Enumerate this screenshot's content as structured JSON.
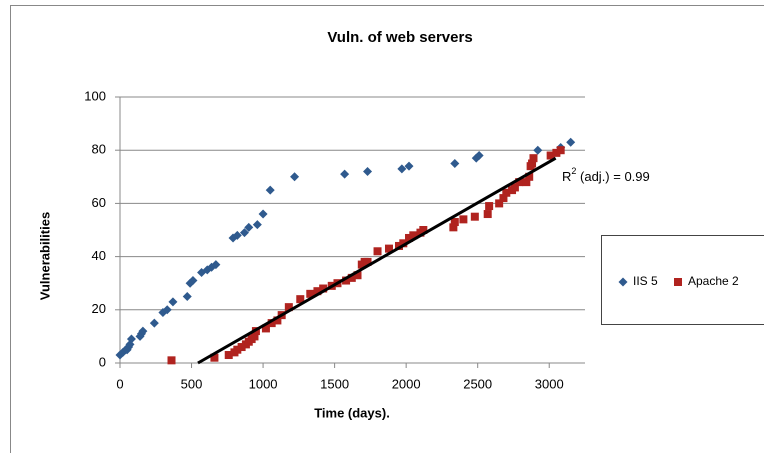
{
  "chart_data": {
    "type": "scatter",
    "title": "Vuln. of web servers",
    "x_label": "Time (days).",
    "y_label": "Vulnerabilities",
    "xlim": [
      0,
      3250
    ],
    "ylim": [
      0,
      100
    ],
    "xticks": [
      0,
      500,
      1000,
      1500,
      2000,
      2500,
      3000
    ],
    "yticks": [
      0,
      20,
      40,
      60,
      80,
      100
    ],
    "grid": true,
    "legend": "right",
    "annotation": [
      "R",
      "2",
      " (adj.) = 0.99"
    ],
    "trendline": {
      "color": "#000000",
      "x": [
        545,
        3045
      ],
      "y": [
        0,
        77
      ]
    },
    "series": [
      {
        "name": "IIS 5",
        "color": "#2f5a8e",
        "marker": "diamond",
        "x": [
          0,
          20,
          40,
          50,
          60,
          70,
          80,
          140,
          150,
          160,
          240,
          300,
          330,
          370,
          470,
          490,
          510,
          570,
          610,
          640,
          670,
          790,
          820,
          870,
          900,
          960,
          1000,
          1050,
          1220,
          1570,
          1730,
          1970,
          2020,
          2340,
          2490,
          2510,
          2920,
          3080,
          3150
        ],
        "values": [
          3,
          4,
          5,
          5,
          6,
          7,
          9,
          10,
          11,
          12,
          15,
          19,
          20,
          23,
          25,
          30,
          31,
          34,
          35,
          36,
          37,
          47,
          48,
          49,
          51,
          52,
          56,
          65,
          70,
          71,
          72,
          73,
          74,
          75,
          77,
          78,
          80,
          81,
          83
        ]
      },
      {
        "name": "Apache 2",
        "color": "#b0231f",
        "marker": "square",
        "x": [
          360,
          660,
          760,
          800,
          820,
          850,
          880,
          900,
          920,
          940,
          950,
          1020,
          1060,
          1100,
          1130,
          1180,
          1260,
          1330,
          1380,
          1420,
          1480,
          1520,
          1580,
          1620,
          1660,
          1690,
          1710,
          1730,
          1800,
          1880,
          1950,
          1980,
          2020,
          2050,
          2100,
          2120,
          2330,
          2340,
          2400,
          2480,
          2570,
          2580,
          2650,
          2680,
          2700,
          2740,
          2760,
          2790,
          2840,
          2860,
          2870,
          2880,
          2890,
          3010,
          3050,
          3080
        ],
        "values": [
          1,
          2,
          3,
          4,
          5,
          6,
          7,
          8,
          9,
          10,
          12,
          13,
          15,
          16,
          18,
          21,
          24,
          26,
          27,
          28,
          29,
          30,
          31,
          32,
          33,
          37,
          38,
          38,
          42,
          43,
          44,
          45,
          47,
          48,
          49,
          50,
          51,
          53,
          54,
          55,
          56,
          59,
          60,
          62,
          64,
          65,
          66,
          68,
          68,
          70,
          74,
          75,
          77,
          78,
          79,
          80
        ]
      }
    ]
  }
}
